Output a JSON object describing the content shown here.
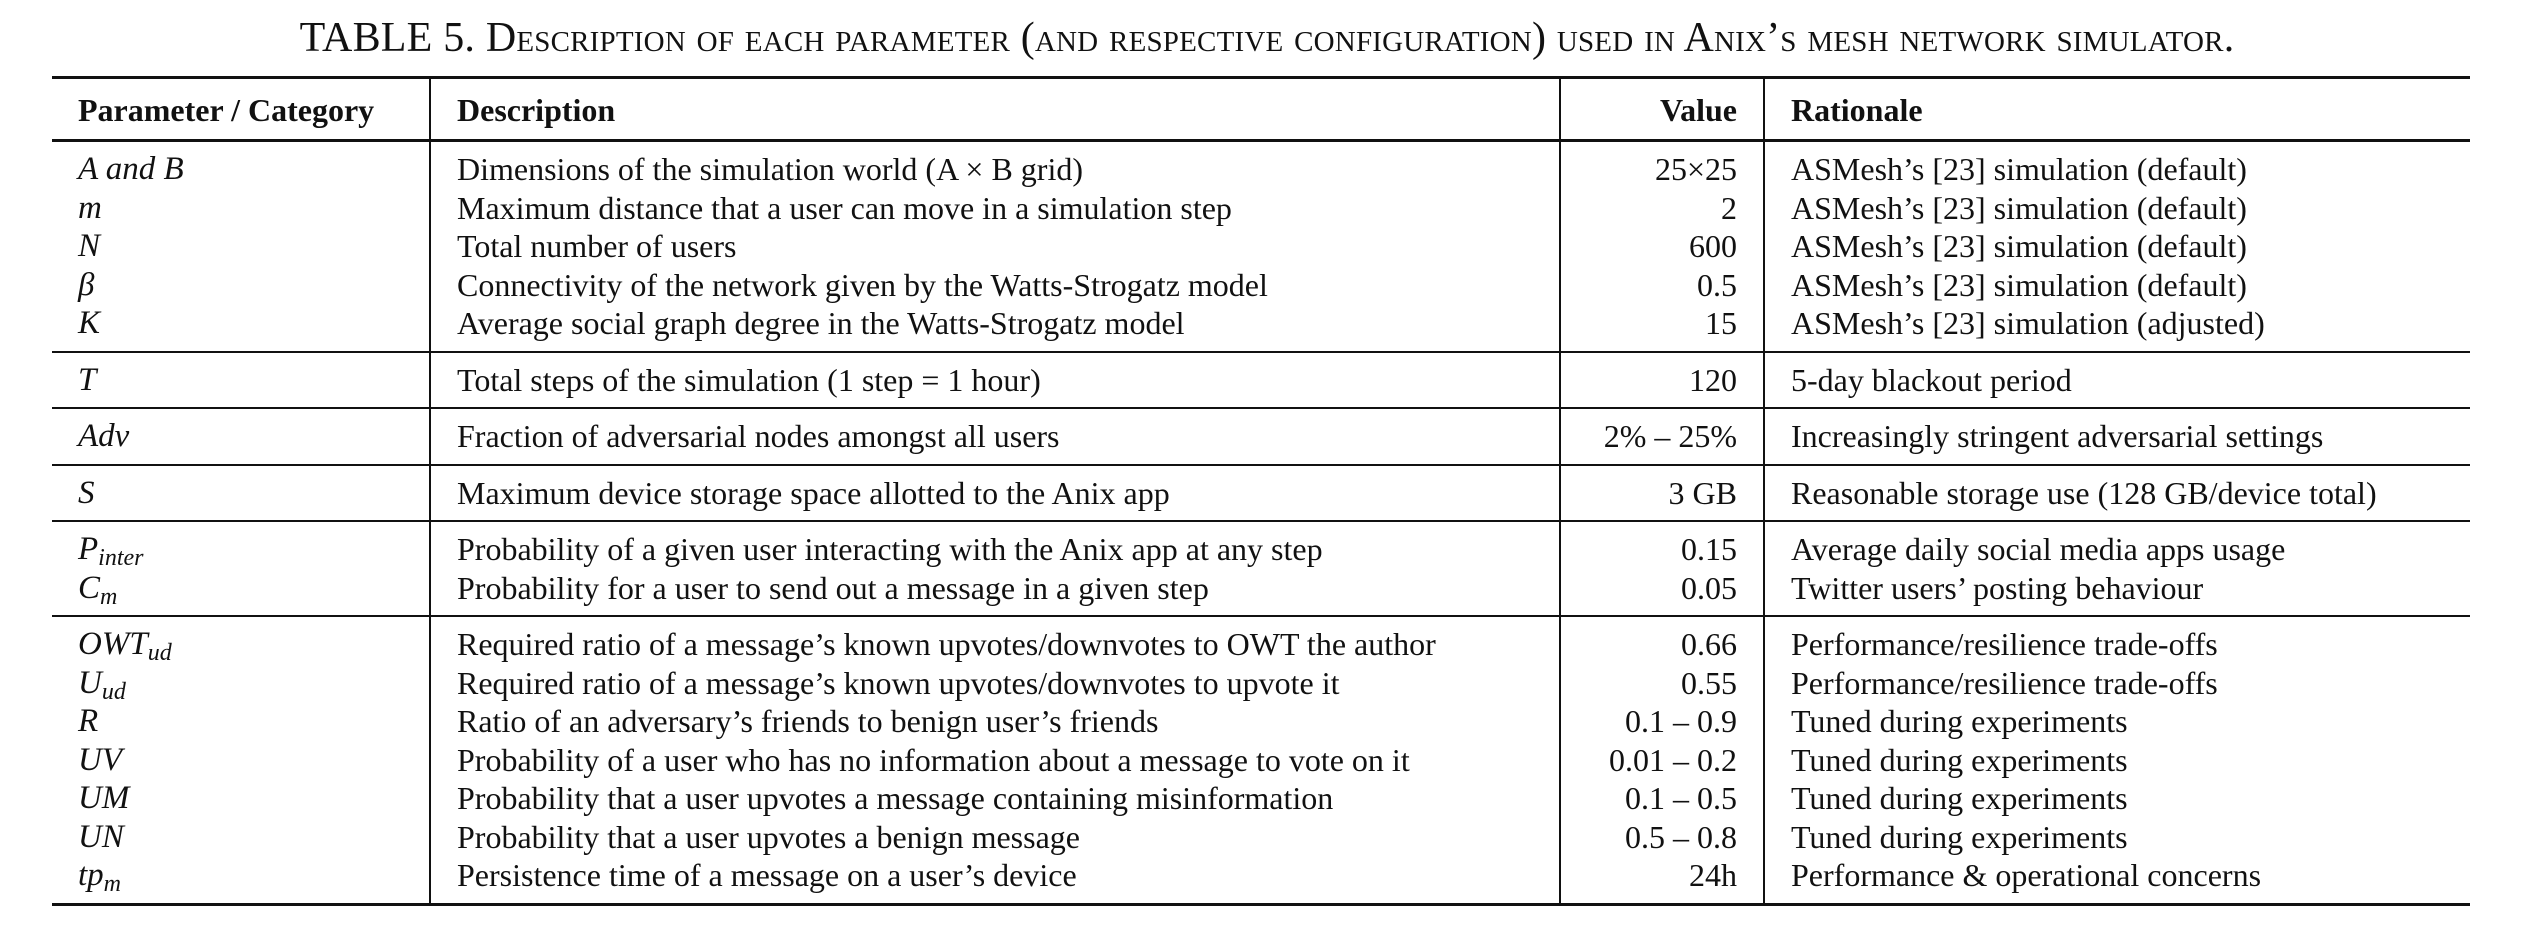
{
  "caption": {
    "label": "TABLE 5.",
    "text": "Description of each parameter (and respective configuration) used in Anix’s mesh network simulator."
  },
  "table": {
    "headers": [
      "Parameter / Category",
      "Description",
      "Value",
      "Rationale"
    ],
    "groups": [
      [
        {
          "param": "A and B",
          "desc": "Dimensions of the simulation world (A × B grid)",
          "value": "25×25",
          "rationale": "ASMesh’s [23] simulation (default)"
        },
        {
          "param": "m",
          "desc": "Maximum distance that a user can move in a simulation step",
          "value": "2",
          "rationale": "ASMesh’s [23] simulation (default)"
        },
        {
          "param": "N",
          "desc": "Total number of users",
          "value": "600",
          "rationale": "ASMesh’s [23] simulation (default)"
        },
        {
          "param": "β",
          "desc": "Connectivity of the network given by the Watts-Strogatz model",
          "value": "0.5",
          "rationale": "ASMesh’s [23] simulation (default)"
        },
        {
          "param": "K",
          "desc": "Average social graph degree in the Watts-Strogatz model",
          "value": "15",
          "rationale": "ASMesh’s [23] simulation (adjusted)"
        }
      ],
      [
        {
          "param": "T",
          "desc": "Total steps of the simulation (1 step = 1 hour)",
          "value": "120",
          "rationale": "5-day blackout period"
        }
      ],
      [
        {
          "param": "Adv",
          "desc": "Fraction of adversarial nodes amongst all users",
          "value": "2% – 25%",
          "rationale": "Increasingly stringent adversarial settings"
        }
      ],
      [
        {
          "param": "S",
          "desc": "Maximum device storage space allotted to the Anix app",
          "value": "3 GB",
          "rationale": "Reasonable storage use (128 GB/device total)"
        }
      ],
      [
        {
          "param": "P",
          "sub": "inter",
          "desc": "Probability of a given user interacting with the Anix app at any step",
          "value": "0.15",
          "rationale": "Average daily social media apps usage"
        },
        {
          "param": "C",
          "sub": "m",
          "desc": "Probability for a user to send out a message in a given step",
          "value": "0.05",
          "rationale": "Twitter users’ posting behaviour"
        }
      ],
      [
        {
          "param": "OWT",
          "sub": "ud",
          "desc": "Required ratio of a message’s known upvotes/downvotes to OWT the author",
          "value": "0.66",
          "rationale": "Performance/resilience trade-offs"
        },
        {
          "param": "U",
          "sub": "ud",
          "desc": "Required ratio of a message’s known upvotes/downvotes to upvote it",
          "value": "0.55",
          "rationale": "Performance/resilience trade-offs"
        },
        {
          "param": "R",
          "desc": "Ratio of an adversary’s friends to benign user’s friends",
          "value": "0.1 – 0.9",
          "rationale": "Tuned during experiments"
        },
        {
          "param": "UV",
          "desc": "Probability of a user who has no information about a message to vote on it",
          "value": "0.01 – 0.2",
          "rationale": "Tuned during experiments"
        },
        {
          "param": "UM",
          "desc": "Probability that a user upvotes a message containing misinformation",
          "value": "0.1 – 0.5",
          "rationale": "Tuned during experiments"
        },
        {
          "param": "UN",
          "desc": "Probability that a user upvotes a benign message",
          "value": "0.5 – 0.8",
          "rationale": "Tuned during experiments"
        },
        {
          "param": "tp",
          "sub": "m",
          "desc": "Persistence time of a message on a user’s device",
          "value": "24h",
          "rationale": "Performance & operational concerns"
        }
      ]
    ]
  }
}
